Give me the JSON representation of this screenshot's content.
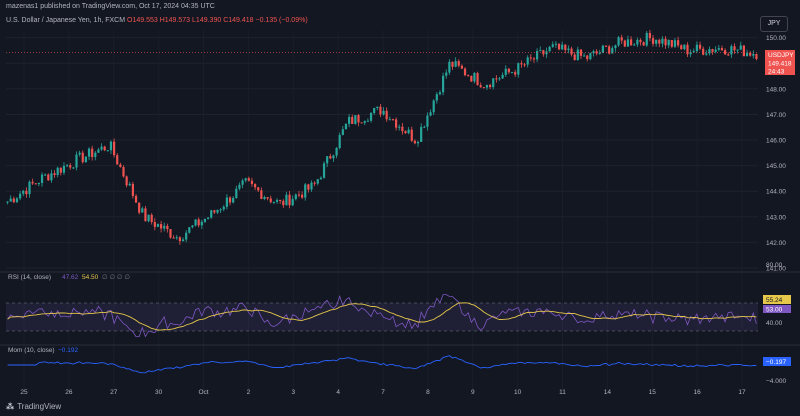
{
  "header": {
    "publish_line": "mazenas1 published on TradingView.com, Oct 17, 2024 04:35 UTC"
  },
  "legend": {
    "title": "U.S. Dollar / Japanese Yen, 1h, FXCM",
    "open": "O149.553",
    "high": "H149.573",
    "low": "L149.390",
    "close": "C149.418",
    "change": "−0.135 (−0.09%)"
  },
  "currency_button": "JPY",
  "price_axis": {
    "ticks": [
      "150.00",
      "149.00",
      "148.00",
      "147.00",
      "146.00",
      "145.00",
      "144.00",
      "143.00",
      "142.00",
      "141.00"
    ],
    "last_symbol": "USDJPY",
    "last_price": "149.418",
    "countdown": "24:43"
  },
  "rsi": {
    "label": "RSI (14, close)",
    "v1": "47.62",
    "v2": "54.50",
    "extra": "∅ ∅ ∅ ∅",
    "ticks": [
      "80.00",
      "40.00"
    ],
    "badge1": "55.24",
    "badge2": "53.00"
  },
  "mom": {
    "label": "Mom (10, close)",
    "value": "−0.192",
    "badge": "−0.197",
    "tick": "−4.000"
  },
  "time_axis": [
    "25",
    "26",
    "27",
    "30",
    "Oct",
    "2",
    "3",
    "4",
    "7",
    "8",
    "9",
    "10",
    "11",
    "14",
    "15",
    "16",
    "17"
  ],
  "branding": "TradingView",
  "colors": {
    "up": "#26a69a",
    "down": "#ef5350",
    "rsi": "#7e57c2",
    "rsi_ma": "#e6c84a",
    "mom": "#2962ff",
    "bg": "#131722"
  },
  "chart_data": {
    "type": "candlestick",
    "symbol": "USDJPY",
    "interval": "1h",
    "x": [
      "25",
      "26",
      "27",
      "30",
      "Oct",
      "2",
      "3",
      "4",
      "7",
      "8",
      "9",
      "10",
      "11",
      "14",
      "15",
      "16",
      "17"
    ],
    "close_path": [
      143.6,
      144.5,
      145.2,
      145.8,
      143.0,
      142.2,
      143.1,
      144.3,
      143.5,
      144.2,
      146.7,
      147.2,
      146.0,
      149.0,
      148.2,
      148.8,
      149.6,
      149.2,
      149.8,
      150.0,
      149.5,
      149.6,
      149.4
    ],
    "ylim": [
      141.0,
      150.3
    ],
    "rsi_ylim": [
      20,
      100
    ],
    "mom_ylim": [
      -5,
      3
    ]
  }
}
